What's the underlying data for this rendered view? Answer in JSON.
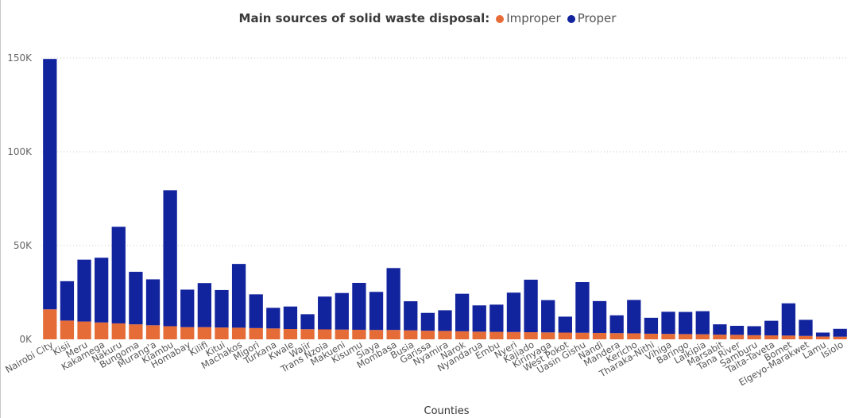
{
  "chart_data": {
    "type": "bar",
    "stacked": true,
    "legend_title": "Main sources of solid waste disposal:",
    "xlabel": "Counties",
    "ylabel": "",
    "ylim": [
      0,
      150000
    ],
    "yticks": [
      {
        "value": 0,
        "label": "0K"
      },
      {
        "value": 50000,
        "label": "50K"
      },
      {
        "value": 100000,
        "label": "100K"
      },
      {
        "value": 150000,
        "label": "150K"
      }
    ],
    "grid": true,
    "legend_position": "top-center",
    "categories": [
      "Nairobi City",
      "Kisii",
      "Meru",
      "Kakamega",
      "Nakuru",
      "Bungoma",
      "Murang'a",
      "Kiambu",
      "Homabay",
      "Kilifi",
      "Kitui",
      "Machakos",
      "Migori",
      "Turkana",
      "Kwale",
      "Wajir",
      "Trans Nzoia",
      "Makueni",
      "Kisumu",
      "Siaya",
      "Mombasa",
      "Busia",
      "Garissa",
      "Nyamira",
      "Narok",
      "Nyandarua",
      "Embu",
      "Nyeri",
      "Kajiado",
      "Kirinyaga",
      "West Pokot",
      "Uasin Gishu",
      "Nandi",
      "Mandera",
      "Kericho",
      "Tharaka-Nithi",
      "Vihiga",
      "Baringo",
      "Laikipia",
      "Marsabit",
      "Tana River",
      "Samburu",
      "Taita-Taveta",
      "Bomet",
      "Elgeyo-Marakwet",
      "Lamu",
      "Isiolo"
    ],
    "series": [
      {
        "name": "Improper",
        "color": "#e66c37",
        "values": [
          16000,
          10000,
          9500,
          9000,
          8500,
          8000,
          7500,
          7000,
          6500,
          6500,
          6300,
          6200,
          6000,
          5800,
          5500,
          5400,
          5300,
          5200,
          5100,
          5000,
          5000,
          4800,
          4600,
          4500,
          4300,
          4100,
          4000,
          3900,
          3800,
          3700,
          3600,
          3500,
          3400,
          3300,
          3200,
          3000,
          2900,
          2800,
          2700,
          2500,
          2400,
          2200,
          2100,
          2000,
          1800,
          1500,
          1400
        ]
      },
      {
        "name": "Proper",
        "color": "#12239e",
        "values": [
          133500,
          21000,
          33000,
          34500,
          51500,
          28000,
          24500,
          72500,
          20000,
          23500,
          20000,
          34000,
          18000,
          11000,
          12000,
          8000,
          17500,
          19500,
          25000,
          20300,
          33000,
          15500,
          9500,
          11000,
          20000,
          14000,
          14500,
          21000,
          28000,
          17200,
          8500,
          27000,
          17000,
          9500,
          17800,
          8500,
          11800,
          11800,
          12300,
          5500,
          4800,
          4800,
          7800,
          17200,
          8600,
          2100,
          4200
        ]
      }
    ]
  }
}
